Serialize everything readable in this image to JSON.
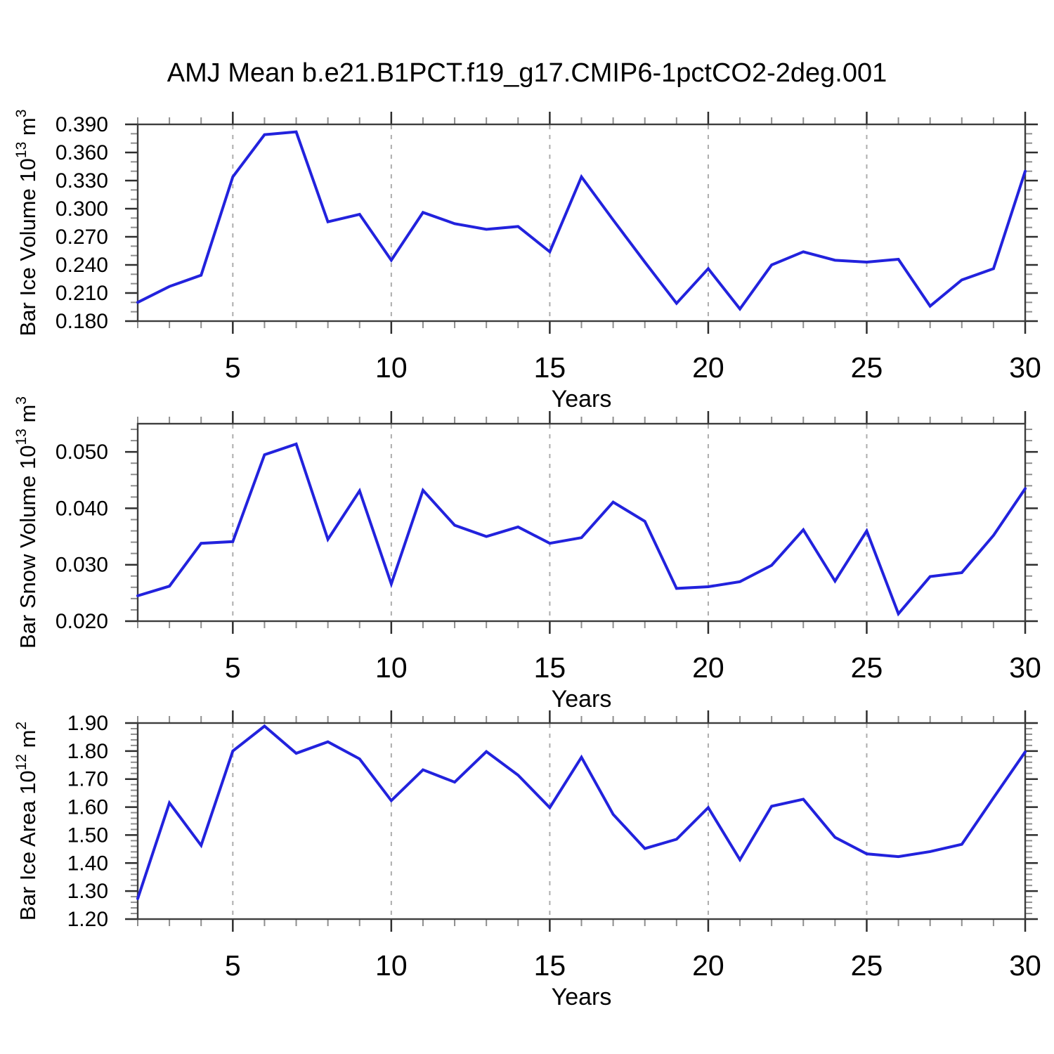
{
  "title": "AMJ Mean b.e21.B1PCT.f19_g17.CMIP6-1pctCO2-2deg.001",
  "colors": {
    "line": "#2222dd",
    "frame": "#3d3d3d",
    "major_tick": "#2f2f2f",
    "minor_tick": "#8e8e8e",
    "grid": "#adadad",
    "text": "#000000"
  },
  "x_axis": {
    "label": "Years",
    "min": 2,
    "max": 30,
    "major_ticks": [
      5,
      10,
      15,
      20,
      25,
      30
    ],
    "gridlines": [
      5,
      10,
      15,
      20,
      25
    ],
    "minor_step": 1
  },
  "years": [
    2,
    3,
    4,
    5,
    6,
    7,
    8,
    9,
    10,
    11,
    12,
    13,
    14,
    15,
    16,
    17,
    18,
    19,
    20,
    21,
    22,
    23,
    24,
    25,
    26,
    27,
    28,
    29,
    30
  ],
  "chart_data": [
    {
      "type": "line",
      "id": "ice-volume",
      "ylabel": "Bar Ice Volume 10^13 m^3",
      "ylabel_parts": [
        {
          "t": "Bar Ice Volume 10"
        },
        {
          "t": "13",
          "sup": true
        },
        {
          "t": " m"
        },
        {
          "t": "3",
          "sup": true
        }
      ],
      "values": [
        0.2,
        0.217,
        0.229,
        0.334,
        0.379,
        0.382,
        0.286,
        0.294,
        0.245,
        0.296,
        0.284,
        0.278,
        0.281,
        0.254,
        0.334,
        0.288,
        0.243,
        0.199,
        0.236,
        0.193,
        0.24,
        0.254,
        0.245,
        0.243,
        0.246,
        0.196,
        0.224,
        0.236,
        0.34
      ],
      "ylim": [
        0.18,
        0.39
      ],
      "y_major_step": 0.03,
      "y_minor_step": 0.01,
      "y_decimals": 3
    },
    {
      "type": "line",
      "id": "snow-volume",
      "ylabel": "Bar Snow Volume 10^13 m^3",
      "ylabel_parts": [
        {
          "t": "Bar Snow Volume 10"
        },
        {
          "t": "13",
          "sup": true
        },
        {
          "t": " m"
        },
        {
          "t": "3",
          "sup": true
        }
      ],
      "values": [
        0.0245,
        0.0262,
        0.0338,
        0.0341,
        0.0495,
        0.0514,
        0.0345,
        0.0431,
        0.0266,
        0.0432,
        0.037,
        0.035,
        0.0367,
        0.0338,
        0.0348,
        0.0411,
        0.0377,
        0.0258,
        0.0261,
        0.027,
        0.0299,
        0.0362,
        0.0271,
        0.036,
        0.0213,
        0.0279,
        0.0286,
        0.0352,
        0.0435
      ],
      "ylim": [
        0.02,
        0.055
      ],
      "y_major_step": 0.01,
      "y_minor_step": 0.002,
      "y_decimals": 3
    },
    {
      "type": "line",
      "id": "ice-area",
      "ylabel": "Bar Ice Area 10^12 m^2",
      "ylabel_parts": [
        {
          "t": "Bar Ice Area 10"
        },
        {
          "t": "12",
          "sup": true
        },
        {
          "t": " m"
        },
        {
          "t": "2",
          "sup": true
        }
      ],
      "values": [
        1.273,
        1.615,
        1.463,
        1.8,
        1.889,
        1.792,
        1.833,
        1.772,
        1.623,
        1.733,
        1.689,
        1.798,
        1.714,
        1.598,
        1.778,
        1.574,
        1.452,
        1.485,
        1.598,
        1.412,
        1.603,
        1.628,
        1.492,
        1.433,
        1.423,
        1.441,
        1.467,
        1.633,
        1.797
      ],
      "ylim": [
        1.2,
        1.9
      ],
      "y_major_step": 0.1,
      "y_minor_step": 0.02,
      "y_decimals": 2
    }
  ]
}
